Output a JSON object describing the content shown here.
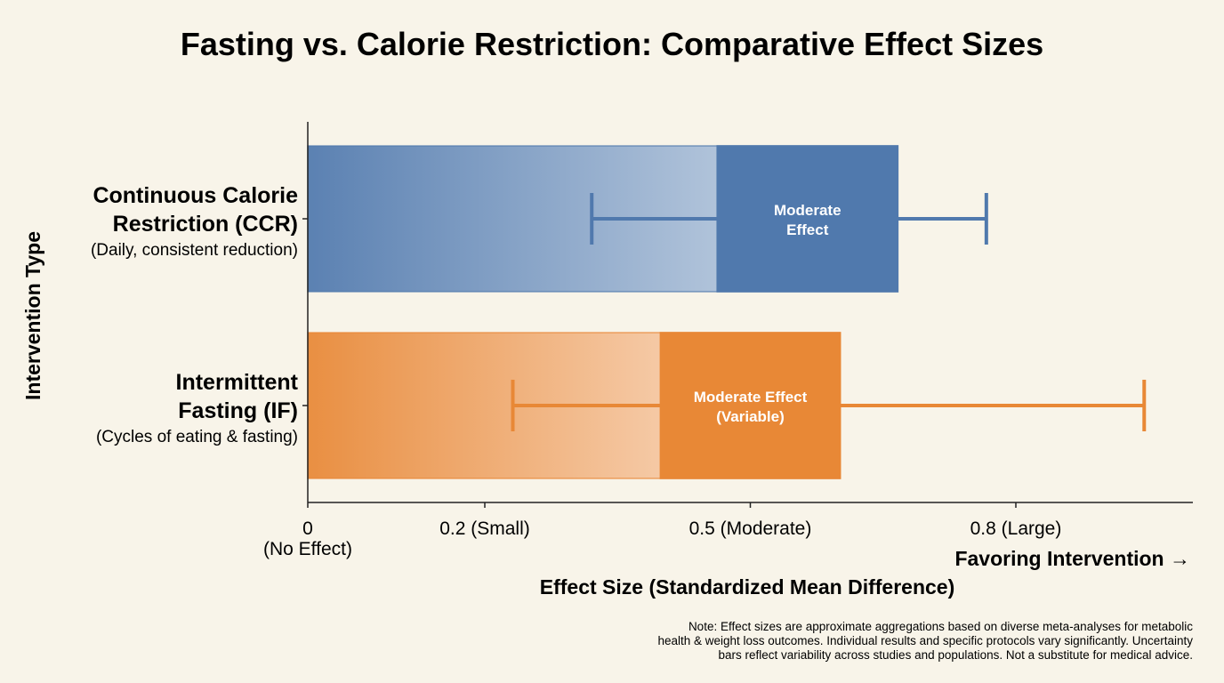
{
  "chart_data": {
    "type": "bar",
    "orientation": "horizontal",
    "title": "Fasting vs. Calorie Restriction: Comparative Effect Sizes",
    "xlabel": "Effect Size (Standardized Mean Difference)",
    "ylabel": "Intervention Type",
    "direction_label": "Favoring Intervention →",
    "xlim": [
      0,
      1.2
    ],
    "ticks": [
      {
        "value": 0,
        "label": "0",
        "sublabel": "(No Effect)"
      },
      {
        "value": 0.24,
        "label": "0.2 (Small)",
        "sublabel": ""
      },
      {
        "value": 0.6,
        "label": "0.5 (Moderate)",
        "sublabel": ""
      },
      {
        "value": 0.96,
        "label": "0.8 (Large)",
        "sublabel": ""
      }
    ],
    "categories": [
      {
        "name": "Continuous Calorie Restriction (CCR)",
        "name_lines": [
          "Continuous Calorie",
          "Restriction (CCR)"
        ],
        "sublabel": "(Daily, consistent reduction)",
        "value": 0.8,
        "ci_low": 0.385,
        "ci_high": 0.92,
        "band_start": 0.555,
        "color": "#5079ad",
        "label_lines": [
          "Moderate",
          "Effect"
        ]
      },
      {
        "name": "Intermittent Fasting (IF)",
        "name_lines": [
          "Intermittent",
          "Fasting (IF)"
        ],
        "sublabel": "(Cycles of eating & fasting)",
        "value": 0.722,
        "ci_low": 0.278,
        "ci_high": 1.134,
        "band_start": 0.478,
        "color": "#e88836",
        "label_lines": [
          "Moderate Effect",
          "(Variable)"
        ]
      }
    ],
    "grid": false,
    "legend": "none"
  },
  "note_lines": [
    "Note: Effect sizes are approximate aggregations based on diverse meta-analyses for metabolic",
    "health & weight loss outcomes. Individual results and specific protocols vary significantly. Uncertainty",
    "bars reflect variability across studies and populations. Not a substitute for medical advice."
  ]
}
